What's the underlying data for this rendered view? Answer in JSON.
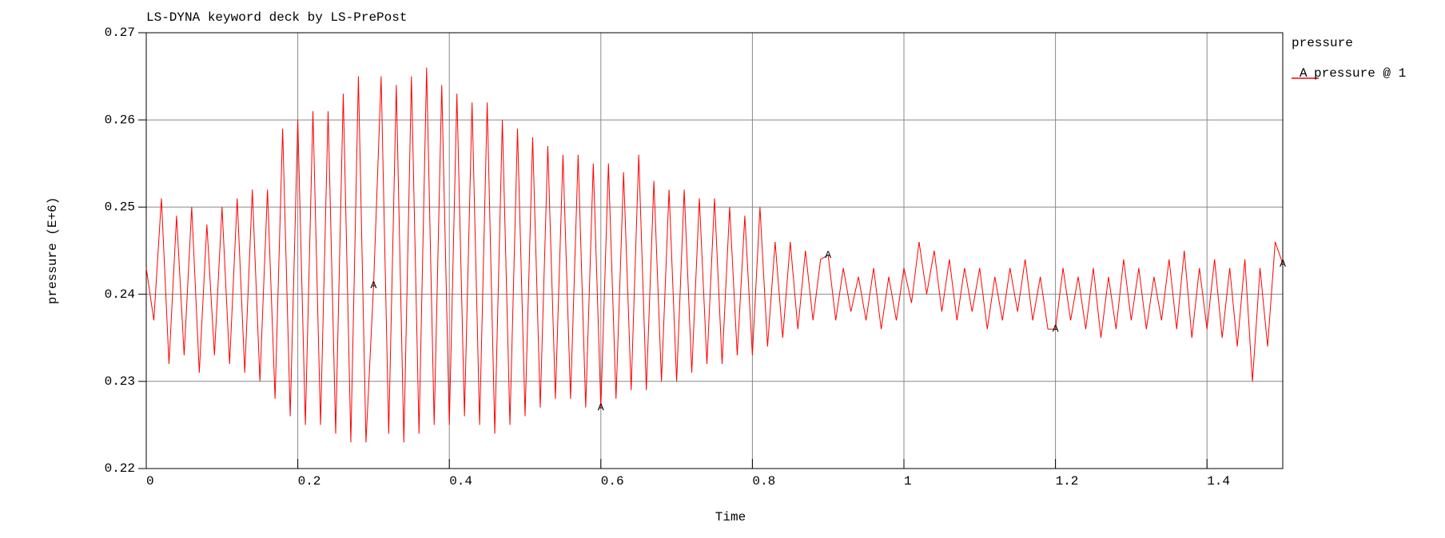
{
  "chart_data": {
    "type": "line",
    "title": "LS-DYNA keyword deck by LS-PrePost",
    "x_label": "Time",
    "y_label": "pressure (E+6)",
    "legend_title": "pressure",
    "xlim": [
      0,
      1.5
    ],
    "ylim": [
      0.22,
      0.27
    ],
    "xticks": [
      0,
      0.2,
      0.4,
      0.6,
      0.8,
      1,
      1.2,
      1.4
    ],
    "yticks": [
      0.22,
      0.23,
      0.24,
      0.25,
      0.26,
      0.27
    ],
    "grid": true,
    "x": [
      0,
      0.01,
      0.02,
      0.03,
      0.04,
      0.05,
      0.06,
      0.07,
      0.08,
      0.09,
      0.1,
      0.11,
      0.12,
      0.13,
      0.14,
      0.15,
      0.16,
      0.17,
      0.18,
      0.19,
      0.2,
      0.21,
      0.22,
      0.23,
      0.24,
      0.25,
      0.26,
      0.27,
      0.28,
      0.29,
      0.3,
      0.31,
      0.32,
      0.33,
      0.34,
      0.35,
      0.36,
      0.37,
      0.38,
      0.39,
      0.4,
      0.41,
      0.42,
      0.43,
      0.44,
      0.45,
      0.46,
      0.47,
      0.48,
      0.49,
      0.5,
      0.51,
      0.52,
      0.53,
      0.54,
      0.55,
      0.56,
      0.57,
      0.58,
      0.59,
      0.6,
      0.61,
      0.62,
      0.63,
      0.64,
      0.65,
      0.66,
      0.67,
      0.68,
      0.69,
      0.7,
      0.71,
      0.72,
      0.73,
      0.74,
      0.75,
      0.76,
      0.77,
      0.78,
      0.79,
      0.8,
      0.81,
      0.82,
      0.83,
      0.84,
      0.85,
      0.86,
      0.87,
      0.88,
      0.89,
      0.9,
      0.91,
      0.92,
      0.93,
      0.94,
      0.95,
      0.96,
      0.97,
      0.98,
      0.99,
      1,
      1.01,
      1.02,
      1.03,
      1.04,
      1.05,
      1.06,
      1.07,
      1.08,
      1.09,
      1.1,
      1.11,
      1.12,
      1.13,
      1.14,
      1.15,
      1.16,
      1.17,
      1.18,
      1.19,
      1.2,
      1.21,
      1.22,
      1.23,
      1.24,
      1.25,
      1.26,
      1.27,
      1.28,
      1.29,
      1.3,
      1.31,
      1.32,
      1.33,
      1.34,
      1.35,
      1.36,
      1.37,
      1.38,
      1.39,
      1.4,
      1.41,
      1.42,
      1.43,
      1.44,
      1.45,
      1.46,
      1.47,
      1.48,
      1.49,
      1.5
    ],
    "series": [
      {
        "name": "pressure @ 1",
        "marker": "A",
        "color": "#ff0000",
        "values": [
          0.243,
          0.237,
          0.251,
          0.232,
          0.249,
          0.233,
          0.25,
          0.231,
          0.248,
          0.233,
          0.25,
          0.232,
          0.251,
          0.231,
          0.252,
          0.23,
          0.252,
          0.228,
          0.259,
          0.226,
          0.26,
          0.225,
          0.261,
          0.225,
          0.261,
          0.224,
          0.263,
          0.223,
          0.265,
          0.223,
          0.241,
          0.265,
          0.224,
          0.264,
          0.223,
          0.265,
          0.224,
          0.266,
          0.225,
          0.264,
          0.225,
          0.263,
          0.226,
          0.262,
          0.225,
          0.262,
          0.224,
          0.26,
          0.225,
          0.259,
          0.226,
          0.258,
          0.227,
          0.257,
          0.228,
          0.256,
          0.228,
          0.256,
          0.227,
          0.255,
          0.227,
          0.255,
          0.228,
          0.254,
          0.229,
          0.256,
          0.229,
          0.253,
          0.23,
          0.252,
          0.23,
          0.252,
          0.231,
          0.251,
          0.232,
          0.251,
          0.232,
          0.25,
          0.233,
          0.249,
          0.233,
          0.25,
          0.234,
          0.246,
          0.235,
          0.246,
          0.236,
          0.245,
          0.237,
          0.244,
          0.2445,
          0.237,
          0.243,
          0.238,
          0.242,
          0.237,
          0.243,
          0.236,
          0.242,
          0.237,
          0.243,
          0.239,
          0.246,
          0.24,
          0.245,
          0.238,
          0.244,
          0.237,
          0.243,
          0.238,
          0.243,
          0.236,
          0.242,
          0.237,
          0.243,
          0.238,
          0.244,
          0.237,
          0.242,
          0.236,
          0.236,
          0.243,
          0.237,
          0.242,
          0.236,
          0.243,
          0.235,
          0.242,
          0.236,
          0.244,
          0.237,
          0.243,
          0.236,
          0.242,
          0.237,
          0.244,
          0.236,
          0.245,
          0.235,
          0.243,
          0.236,
          0.244,
          0.235,
          0.243,
          0.234,
          0.244,
          0.23,
          0.243,
          0.234,
          0.246,
          0.2435
        ]
      }
    ]
  }
}
